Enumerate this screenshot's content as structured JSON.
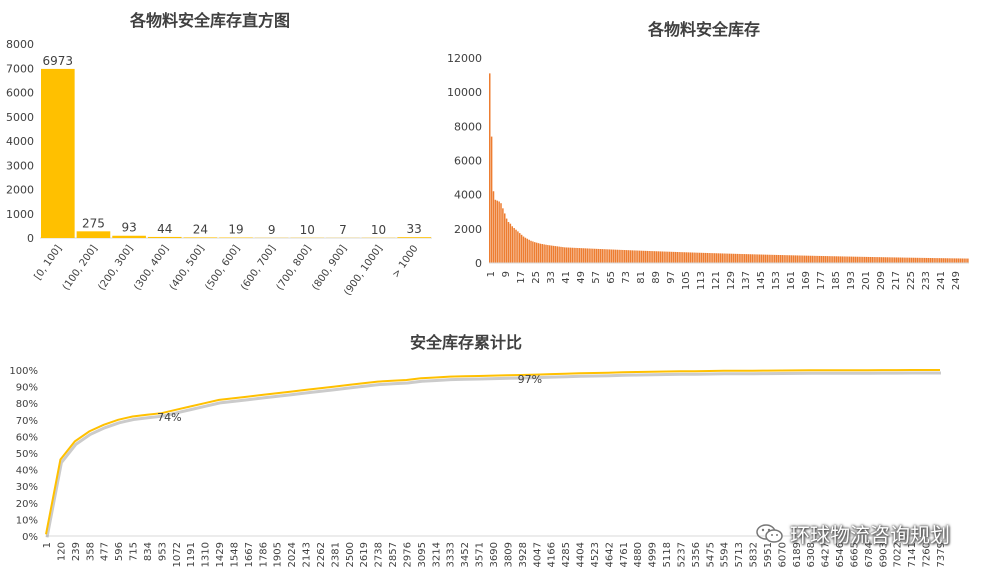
{
  "charts": {
    "histogram": {
      "title": "各物料安全库存直方图",
      "chart_data": {
        "type": "bar",
        "title": "各物料安全库存直方图",
        "categories": [
          "[0, 100]",
          "(100, 200]",
          "(200, 300]",
          "(300, 400]",
          "(400, 500]",
          "(500, 600]",
          "(600, 700]",
          "(700, 800]",
          "(800, 900]",
          "(900, 1000]",
          "> 1000"
        ],
        "values": [
          6973,
          275,
          93,
          44,
          24,
          19,
          9,
          10,
          7,
          10,
          33
        ],
        "ylim": [
          0,
          8000
        ],
        "yticks": [
          0,
          1000,
          2000,
          3000,
          4000,
          5000,
          6000,
          7000,
          8000
        ],
        "grid": false,
        "color": "#FFC000"
      }
    },
    "stock": {
      "title": "各物料安全库存",
      "chart_data": {
        "type": "bar",
        "title": "各物料安全库存",
        "x_count": 256,
        "x_tick_labels": [
          "1",
          "9",
          "17",
          "25",
          "33",
          "41",
          "49",
          "57",
          "65",
          "73",
          "81",
          "89",
          "97",
          "105",
          "113",
          "121",
          "129",
          "137",
          "145",
          "153",
          "161",
          "169",
          "177",
          "185",
          "193",
          "201",
          "209",
          "217",
          "225",
          "233",
          "241",
          "249"
        ],
        "values_leading": [
          11100,
          7400,
          4200,
          3700,
          3650,
          3600,
          3500,
          3200,
          2900,
          2600,
          2400,
          2300,
          2150,
          2050,
          1950,
          1850,
          1750,
          1650,
          1550,
          1480,
          1420,
          1360,
          1300,
          1260,
          1220,
          1190,
          1160,
          1130,
          1110,
          1090,
          1070,
          1050,
          1035,
          1020,
          1005,
          990,
          975,
          960,
          945,
          930
        ],
        "values_tail_profile": {
          "from_index": 41,
          "start_value": 915,
          "end_index": 256,
          "end_value": 260
        },
        "ylim": [
          0,
          12000
        ],
        "yticks": [
          0,
          2000,
          4000,
          6000,
          8000,
          10000,
          12000
        ],
        "color": "#ED7D31"
      }
    },
    "cumulative": {
      "title": "安全库存累计比",
      "chart_data": {
        "type": "line",
        "title": "安全库存累计比",
        "x": [
          1,
          120,
          239,
          358,
          477,
          596,
          715,
          834,
          953,
          1072,
          1191,
          1310,
          1429,
          1548,
          1667,
          1786,
          1905,
          2024,
          2143,
          2262,
          2381,
          2500,
          2619,
          2738,
          2857,
          2976,
          3095,
          3214,
          3333,
          3452,
          3571,
          3690,
          3809,
          3928,
          4047,
          4166,
          4285,
          4404,
          4523,
          4642,
          4761,
          4880,
          4999,
          5118,
          5237,
          5356,
          5475,
          5594,
          5713,
          5832,
          5951,
          6070,
          6189,
          6308,
          6427,
          6546,
          6665,
          6784,
          6903,
          7022,
          7141,
          7260,
          7379
        ],
        "x_tick_labels": [
          "1",
          "120",
          "239",
          "358",
          "477",
          "596",
          "715",
          "834",
          "953",
          "1072",
          "1191",
          "1310",
          "1429",
          "1548",
          "1667",
          "1786",
          "1905",
          "2024",
          "2143",
          "2262",
          "2381",
          "2500",
          "2619",
          "2738",
          "2857",
          "2976",
          "3095",
          "3214",
          "3333",
          "3452",
          "3571",
          "3690",
          "3809",
          "3928",
          "4047",
          "4166",
          "4285",
          "4404",
          "4523",
          "4642",
          "4761",
          "4880",
          "4999",
          "5118",
          "5237",
          "5356",
          "5475",
          "5594",
          "5713",
          "5832",
          "5951",
          "6070",
          "6189",
          "6308",
          "6427",
          "6546",
          "6665",
          "6784",
          "6903",
          "7022",
          "7141",
          "7260",
          "7379"
        ],
        "y": [
          1,
          46,
          57,
          63,
          67,
          70,
          72,
          73,
          74,
          76,
          78,
          80,
          82,
          83,
          84,
          85,
          86,
          87,
          88,
          89,
          90,
          91,
          92,
          93,
          93.5,
          94,
          95,
          95.5,
          96,
          96.2,
          96.4,
          96.6,
          96.8,
          97,
          97.2,
          97.5,
          97.8,
          98,
          98.2,
          98.4,
          98.6,
          98.8,
          99,
          99.1,
          99.2,
          99.3,
          99.4,
          99.5,
          99.55,
          99.6,
          99.65,
          99.7,
          99.75,
          99.8,
          99.82,
          99.85,
          99.88,
          99.9,
          99.92,
          99.95,
          99.97,
          99.99,
          100
        ],
        "annotations": [
          {
            "x": 953,
            "y": 74,
            "label": "74%"
          },
          {
            "x": 3928,
            "y": 97,
            "label": "97%"
          }
        ],
        "ylim": [
          0,
          100
        ],
        "yticks": [
          "0%",
          "10%",
          "20%",
          "30%",
          "40%",
          "50%",
          "60%",
          "70%",
          "80%",
          "90%",
          "100%"
        ],
        "color": "#FFC000"
      }
    }
  },
  "watermark": {
    "text": "环球物流咨询规划",
    "icon": "wechat-icon"
  }
}
